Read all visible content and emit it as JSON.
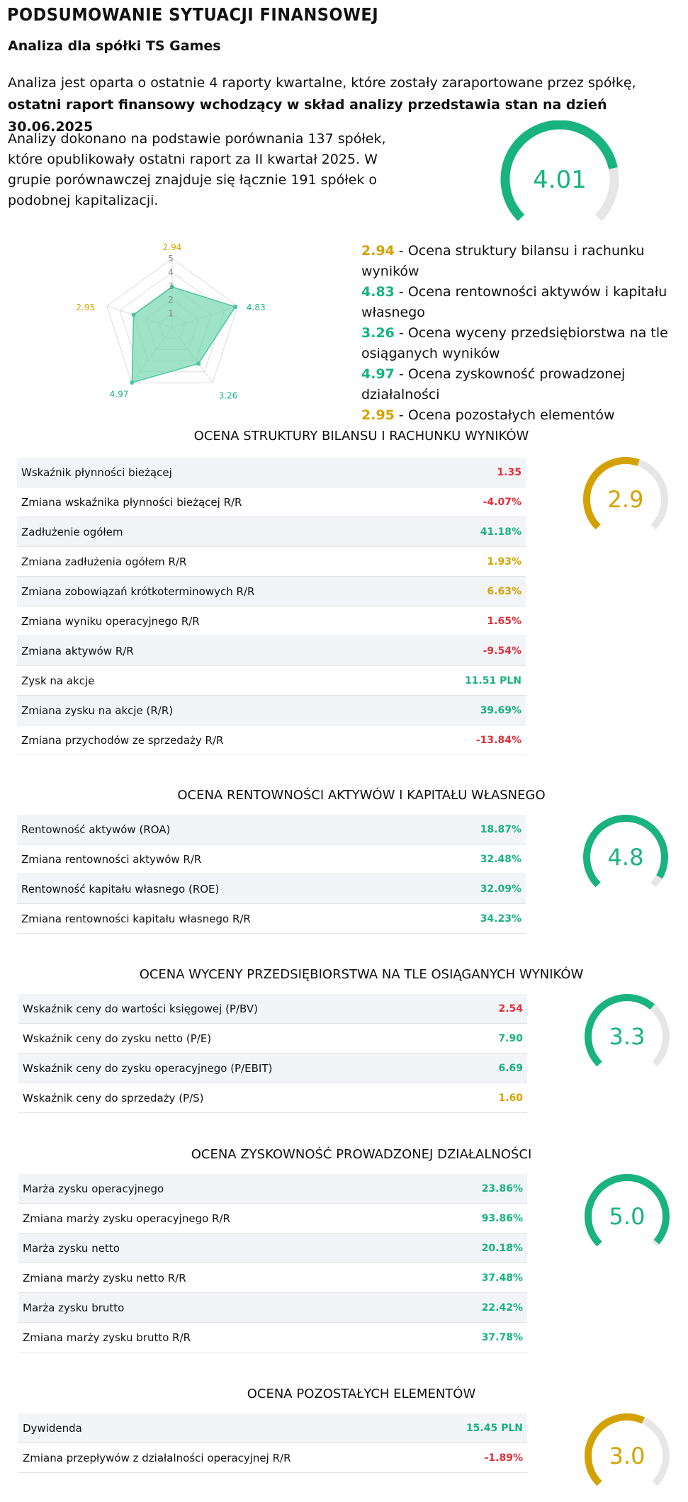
{
  "header": {
    "title": "PODSUMOWANIE SYTUACJI FINANSOWEJ",
    "subtitle": "Analiza dla spółki TS Games",
    "intro_plain": "Analiza jest oparta o ostatnie 4 raporty kwartalne, które zostały zaraportowane przez spółkę, ",
    "intro_bold": "ostatni raport finansowy wchodzący w skład analizy przedstawia stan na dzień 30.06.2025",
    "analysis_text": "Analizy dokonano na podstawie porównania 137 spółek, które opublikowały ostatni raport za II kwartał 2025. W grupie porównawczej znajduje się łącznie 191 spółek o podobnej kapitalizacji."
  },
  "overall": {
    "score": "4.01",
    "value": 4.01,
    "max": 5,
    "color": "#19b37f"
  },
  "radar": {
    "scale_labels": [
      "1",
      "2",
      "3",
      "4",
      "5"
    ],
    "max": 5,
    "points": [
      {
        "label": "2.94",
        "value": 2.94,
        "color": "#d4a200"
      },
      {
        "label": "4.83",
        "value": 4.83,
        "color": "#19b37f"
      },
      {
        "label": "3.26",
        "value": 3.26,
        "color": "#19b37f"
      },
      {
        "label": "4.97",
        "value": 4.97,
        "color": "#19b37f"
      },
      {
        "label": "2.95",
        "value": 2.95,
        "color": "#d4a200"
      }
    ],
    "fill": "#7ed9b6",
    "stroke": "#4cc79c"
  },
  "legend": [
    {
      "value": "2.94",
      "text": " - Ocena struktury bilansu i rachunku wyników",
      "color": "#d4a200"
    },
    {
      "value": "4.83",
      "text": " - Ocena rentowności aktywów i kapitału własnego",
      "color": "#19b37f"
    },
    {
      "value": "3.26",
      "text": " - Ocena wyceny przedsiębiorstwa na tle osiąganych wyników",
      "color": "#19b37f"
    },
    {
      "value": "4.97",
      "text": " - Ocena zyskowność prowadzonej działalności",
      "color": "#19b37f"
    },
    {
      "value": "2.95",
      "text": " - Ocena pozostałych elementów",
      "color": "#d4a200"
    }
  ],
  "sections": [
    {
      "title": "OCENA STRUKTURY BILANSU I RACHUNKU WYNIKÓW",
      "score": "2.9",
      "value": 2.9,
      "color": "#d4a200",
      "rows": [
        {
          "label": "Wskaźnik płynności bieżącej",
          "value": "1.35",
          "cls": "red"
        },
        {
          "label": "Zmiana wskaźnika płynności bieżącej R/R",
          "value": "-4.07%",
          "cls": "red"
        },
        {
          "label": "Zadłużenie ogółem",
          "value": "41.18%",
          "cls": "green"
        },
        {
          "label": "Zmiana zadłużenia ogółem R/R",
          "value": "1.93%",
          "cls": "yellow"
        },
        {
          "label": "Zmiana zobowiązań krótkoterminowych R/R",
          "value": "6.63%",
          "cls": "yellow"
        },
        {
          "label": "Zmiana wyniku operacyjnego R/R",
          "value": "1.65%",
          "cls": "red"
        },
        {
          "label": "Zmiana aktywów R/R",
          "value": "-9.54%",
          "cls": "red"
        },
        {
          "label": "Zysk na akcje",
          "value": "11.51 PLN",
          "cls": "green"
        },
        {
          "label": "Zmiana zysku na akcje (R/R)",
          "value": "39.69%",
          "cls": "green"
        },
        {
          "label": "Zmiana przychodów ze sprzedaży R/R",
          "value": "-13.84%",
          "cls": "red"
        }
      ]
    },
    {
      "title": "OCENA RENTOWNOŚCI AKTYWÓW I KAPITAŁU WŁASNEGO",
      "score": "4.8",
      "value": 4.8,
      "color": "#19b37f",
      "rows": [
        {
          "label": "Rentowność aktywów (ROA)",
          "value": "18.87%",
          "cls": "green"
        },
        {
          "label": "Zmiana rentowności aktywów R/R",
          "value": "32.48%",
          "cls": "green"
        },
        {
          "label": "Rentowność kapitału własnego (ROE)",
          "value": "32.09%",
          "cls": "green"
        },
        {
          "label": "Zmiana rentowności kapitału własnego R/R",
          "value": "34.23%",
          "cls": "green"
        }
      ]
    },
    {
      "title": "OCENA WYCENY PRZEDSIĘBIORSTWA NA TLE OSIĄGANYCH WYNIKÓW",
      "score": "3.3",
      "value": 3.3,
      "color": "#19b37f",
      "rows": [
        {
          "label": "Wskaźnik ceny do wartości księgowej (P/BV)",
          "value": "2.54",
          "cls": "red"
        },
        {
          "label": "Wskaźnik ceny do zysku netto (P/E)",
          "value": "7.90",
          "cls": "green"
        },
        {
          "label": "Wskaźnik ceny do zysku operacyjnego (P/EBIT)",
          "value": "6.69",
          "cls": "green"
        },
        {
          "label": "Wskaźnik ceny do sprzedaży (P/S)",
          "value": "1.60",
          "cls": "yellow"
        }
      ]
    },
    {
      "title": "OCENA ZYSKOWNOŚĆ PROWADZONEJ DZIAŁALNOŚCI",
      "score": "5.0",
      "value": 5.0,
      "color": "#19b37f",
      "rows": [
        {
          "label": "Marża zysku operacyjnego",
          "value": "23.86%",
          "cls": "green"
        },
        {
          "label": "Zmiana marży zysku operacyjnego R/R",
          "value": "93.86%",
          "cls": "green"
        },
        {
          "label": "Marża zysku netto",
          "value": "20.18%",
          "cls": "green"
        },
        {
          "label": "Zmiana marży zysku netto R/R",
          "value": "37.48%",
          "cls": "green"
        },
        {
          "label": "Marża zysku brutto",
          "value": "22.42%",
          "cls": "green"
        },
        {
          "label": "Zmiana marży zysku brutto R/R",
          "value": "37.78%",
          "cls": "green"
        }
      ]
    },
    {
      "title": "OCENA POZOSTAŁYCH ELEMENTÓW",
      "score": "3.0",
      "value": 3.0,
      "color": "#d4a200",
      "rows": [
        {
          "label": "Dywidenda",
          "value": "15.45 PLN",
          "cls": "green"
        },
        {
          "label": "Zmiana przepływów z działalności operacyjnej R/R",
          "value": "-1.89%",
          "cls": "red"
        }
      ]
    }
  ]
}
